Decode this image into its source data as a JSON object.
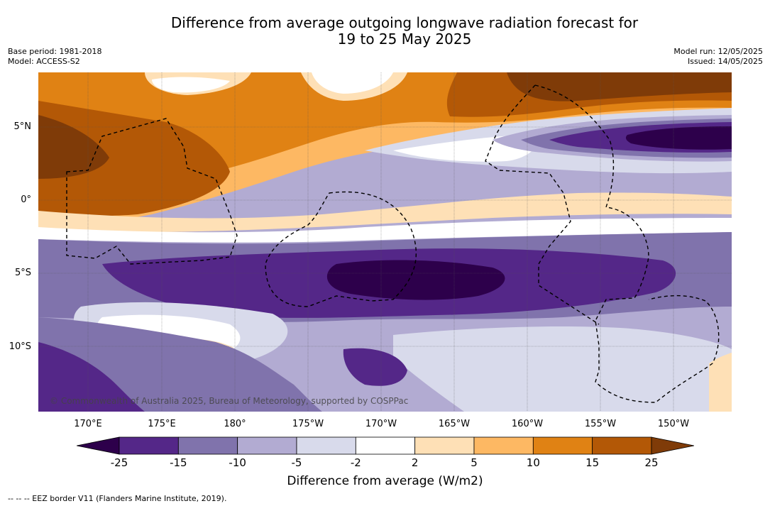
{
  "title": {
    "line1": "Difference from average outgoing longwave radiation forecast for",
    "line2": "19 to 25 May 2025"
  },
  "meta_left": {
    "base_period": "Base period: 1981-2018",
    "model": "Model: ACCESS-S2"
  },
  "meta_right": {
    "model_run": "Model run: 12/05/2025",
    "issued": "Issued: 14/05/2025"
  },
  "lat_labels": [
    "5°N",
    "0°",
    "5°S",
    "10°S"
  ],
  "lon_labels": [
    "170°E",
    "175°E",
    "180°",
    "175°W",
    "170°W",
    "165°W",
    "160°W",
    "155°W",
    "150°W"
  ],
  "copyright": "© Commonwealth of Australia 2025, Bureau of Meteorology, supported by COSPPac",
  "colorbar": {
    "ticks": [
      "-25",
      "-15",
      "-10",
      "-5",
      "-2",
      "2",
      "5",
      "10",
      "15",
      "25"
    ],
    "colors": [
      "#2d004b",
      "#542788",
      "#8073ac",
      "#b2abd2",
      "#d8daeb",
      "#ffffff",
      "#fee0b6",
      "#fdb863",
      "#e08214",
      "#b35806",
      "#7f3b08"
    ],
    "label": "Difference from average (W/m2)"
  },
  "footnote": "--  --  -- EEZ border V11 (Flanders Marine Institute, 2019)."
}
